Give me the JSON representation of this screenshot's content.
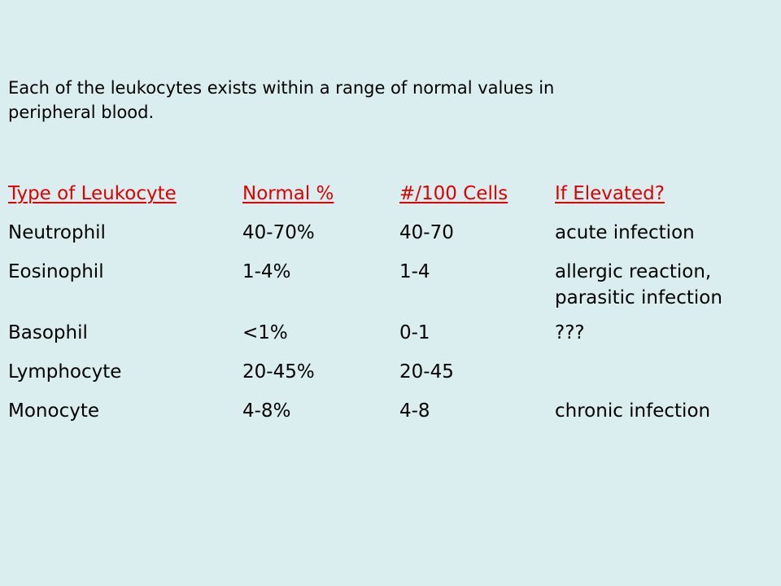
{
  "intro": {
    "line1": "Each of the leukocytes exists within a range of normal values in",
    "line2": "peripheral blood."
  },
  "table": {
    "headers": [
      "Type of Leukocyte",
      "Normal %",
      "#/100 Cells",
      "If Elevated?"
    ],
    "rows": [
      {
        "type": "Neutrophil",
        "normal": "40-70%",
        "per100": "40-70",
        "elevated": [
          "acute infection"
        ]
      },
      {
        "type": "Eosinophil",
        "normal": "1-4%",
        "per100": "1-4",
        "elevated": [
          "allergic reaction,",
          "parasitic infection"
        ]
      },
      {
        "type": "Basophil",
        "normal": "<1%",
        "per100": "0-1",
        "elevated": [
          "???"
        ]
      },
      {
        "type": "Lymphocyte",
        "normal": "20-45%",
        "per100": "20-45",
        "elevated": [
          ""
        ]
      },
      {
        "type": "Monocyte",
        "normal": "4-8%",
        "per100": "4-8",
        "elevated": [
          "chronic infection"
        ]
      }
    ]
  },
  "colors": {
    "background": "#daedef",
    "header_text": "#e00000",
    "body_text": "#000000"
  }
}
